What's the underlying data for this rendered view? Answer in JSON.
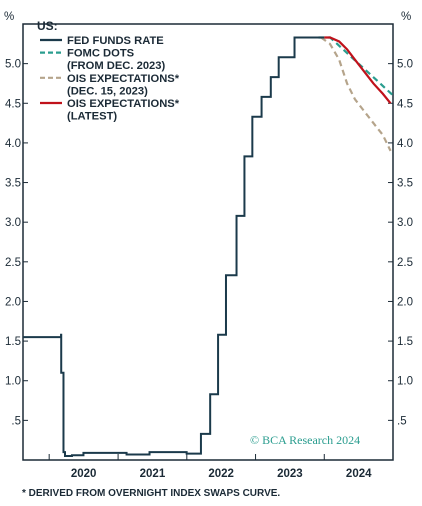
{
  "chart_data": {
    "type": "line",
    "unit_left": "%",
    "unit_right": "%",
    "ylim": [
      0,
      5.5
    ],
    "xlim": [
      "2019-08-15",
      "2024-12-31"
    ],
    "yticks": [
      0.5,
      1.0,
      1.5,
      2.0,
      2.5,
      3.0,
      3.5,
      4.0,
      4.5,
      5.0
    ],
    "ytick_labels": [
      ".5",
      "1.0",
      "1.5",
      "2.0",
      "2.5",
      "3.0",
      "3.5",
      "4.0",
      "4.5",
      "5.0"
    ],
    "xtick_labels": [
      {
        "label": "2020",
        "date": "2020-01-01"
      },
      {
        "label": "2021",
        "date": "2021-01-01"
      },
      {
        "label": "2022",
        "date": "2022-01-01"
      },
      {
        "label": "2023",
        "date": "2023-01-01"
      },
      {
        "label": "2024",
        "date": "2024-01-01"
      }
    ],
    "legend": {
      "title": "US:",
      "placement": "top-left",
      "entries": [
        {
          "lines": [
            "FED FUNDS RATE"
          ],
          "style": "solid",
          "color": "#1b3a4b"
        },
        {
          "lines": [
            "FOMC DOTS",
            "(FROM DEC. 2023)"
          ],
          "style": "dashed",
          "color": "#2a9d8f"
        },
        {
          "lines": [
            "OIS EXPECTATIONS*",
            "(DEC. 15, 2023)"
          ],
          "style": "dashed",
          "color": "#b5a48b"
        },
        {
          "lines": [
            "OIS EXPECTATIONS*",
            "(LATEST)"
          ],
          "style": "solid",
          "color": "#c0121b"
        }
      ]
    },
    "series": [
      {
        "name": "FED FUNDS RATE",
        "style": "step",
        "color": "#1b3a4b",
        "points": [
          [
            "2019-08-15",
            1.55
          ],
          [
            "2019-10-31",
            1.55
          ],
          [
            "2020-03-04",
            1.58
          ],
          [
            "2020-03-05",
            1.1
          ],
          [
            "2020-03-17",
            0.1
          ],
          [
            "2020-03-25",
            0.05
          ],
          [
            "2020-05-01",
            0.06
          ],
          [
            "2020-07-01",
            0.09
          ],
          [
            "2020-12-01",
            0.09
          ],
          [
            "2021-02-15",
            0.07
          ],
          [
            "2021-06-17",
            0.1
          ],
          [
            "2021-12-31",
            0.08
          ],
          [
            "2022-03-17",
            0.33
          ],
          [
            "2022-05-05",
            0.83
          ],
          [
            "2022-06-16",
            1.58
          ],
          [
            "2022-07-28",
            2.33
          ],
          [
            "2022-09-22",
            3.08
          ],
          [
            "2022-11-03",
            3.83
          ],
          [
            "2022-12-15",
            4.33
          ],
          [
            "2023-02-02",
            4.58
          ],
          [
            "2023-03-23",
            4.83
          ],
          [
            "2023-05-04",
            5.08
          ],
          [
            "2023-07-27",
            5.33
          ],
          [
            "2023-12-31",
            5.33
          ]
        ]
      },
      {
        "name": "FOMC DOTS (FROM DEC. 2023)",
        "style": "dashed",
        "color": "#2a9d8f",
        "points": [
          [
            "2023-12-01",
            5.33
          ],
          [
            "2024-02-01",
            5.33
          ],
          [
            "2024-04-01",
            5.2
          ],
          [
            "2024-07-01",
            5.0
          ],
          [
            "2024-10-01",
            4.8
          ],
          [
            "2024-12-31",
            4.6
          ]
        ]
      },
      {
        "name": "OIS EXPECTATIONS (DEC. 15, 2023)",
        "style": "dashed",
        "color": "#b5a48b",
        "points": [
          [
            "2023-12-15",
            5.33
          ],
          [
            "2024-01-31",
            5.25
          ],
          [
            "2024-03-20",
            5.05
          ],
          [
            "2024-05-01",
            4.75
          ],
          [
            "2024-06-12",
            4.55
          ],
          [
            "2024-07-31",
            4.4
          ],
          [
            "2024-09-18",
            4.25
          ],
          [
            "2024-11-07",
            4.1
          ],
          [
            "2024-12-18",
            3.9
          ]
        ]
      },
      {
        "name": "OIS EXPECTATIONS (LATEST)",
        "style": "solid",
        "color": "#c0121b",
        "points": [
          [
            "2024-01-01",
            5.33
          ],
          [
            "2024-02-01",
            5.33
          ],
          [
            "2024-03-20",
            5.28
          ],
          [
            "2024-05-01",
            5.18
          ],
          [
            "2024-06-12",
            5.05
          ],
          [
            "2024-07-31",
            4.9
          ],
          [
            "2024-09-18",
            4.75
          ],
          [
            "2024-11-07",
            4.62
          ],
          [
            "2024-12-18",
            4.5
          ]
        ]
      }
    ],
    "credit": "© BCA Research 2024",
    "footnote": "* DERIVED FROM OVERNIGHT INDEX SWAPS CURVE."
  }
}
